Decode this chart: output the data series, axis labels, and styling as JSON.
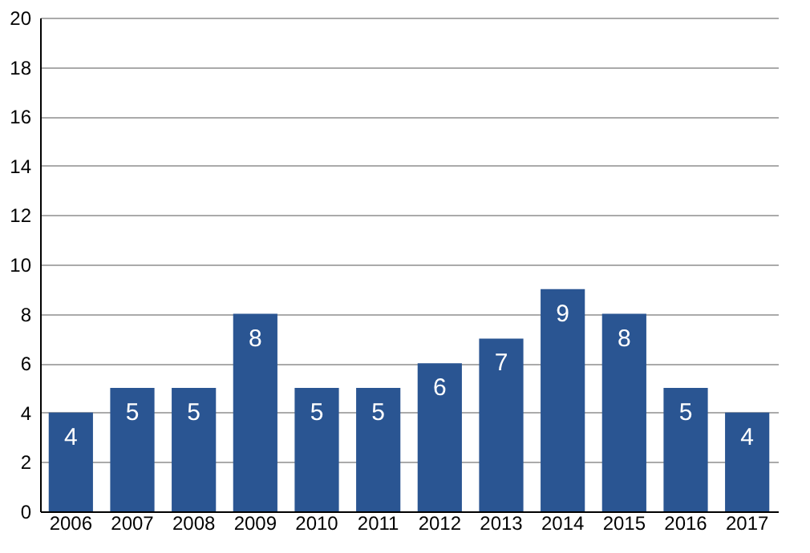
{
  "chart_data": {
    "type": "bar",
    "categories": [
      "2006",
      "2007",
      "2008",
      "2009",
      "2010",
      "2011",
      "2012",
      "2013",
      "2014",
      "2015",
      "2016",
      "2017"
    ],
    "values": [
      4,
      5,
      5,
      8,
      5,
      5,
      6,
      7,
      9,
      8,
      5,
      4
    ],
    "color": "#2a5592",
    "ylim": [
      0,
      20
    ],
    "yticks": [
      0,
      2,
      4,
      6,
      8,
      10,
      12,
      14,
      16,
      18,
      20
    ],
    "grid": "y",
    "data_labels": true
  }
}
